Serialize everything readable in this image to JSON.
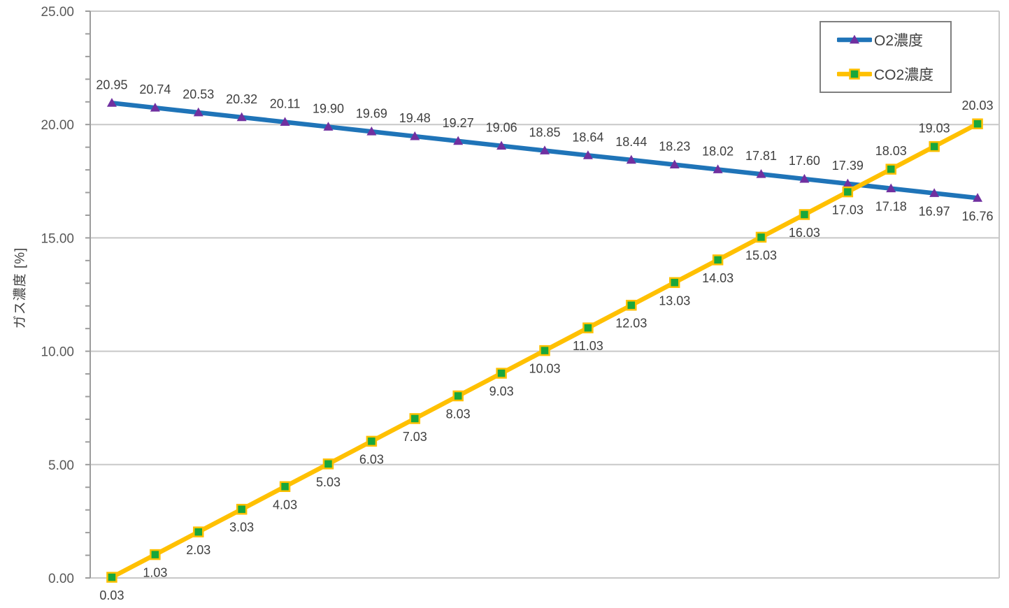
{
  "chart_data": {
    "type": "line",
    "title": "",
    "ylabel": "ガス濃度 [%]",
    "ylim": [
      0,
      25
    ],
    "grid": "horizontal-major",
    "y_minor_tick_interval": 1,
    "x_axis_labels_visible": false,
    "y_ticks": [
      {
        "value": 0,
        "label": "0.00"
      },
      {
        "value": 5,
        "label": "5.00"
      },
      {
        "value": 10,
        "label": "10.00"
      },
      {
        "value": 15,
        "label": "15.00"
      },
      {
        "value": 20,
        "label": "20.00"
      },
      {
        "value": 25,
        "label": "25.00"
      }
    ],
    "legend": {
      "position": "top-right",
      "border_color": "#7f7f7f"
    },
    "colors": {
      "gridline": "#c8c8c8",
      "axis": "#9c9c9c",
      "tick_label": "#595959",
      "data_label": "#3f3f3f"
    },
    "series": [
      {
        "name": "O2濃度",
        "line_color": "#1f74b8",
        "marker": "triangle",
        "marker_color": "#7030a0",
        "label_side_default": "above",
        "label_side_flip_start": 18,
        "values": [
          20.95,
          20.74,
          20.53,
          20.32,
          20.11,
          19.9,
          19.69,
          19.48,
          19.27,
          19.06,
          18.85,
          18.64,
          18.44,
          18.23,
          18.02,
          17.81,
          17.6,
          17.39,
          17.18,
          16.97,
          16.76
        ],
        "data_labels": [
          "20.95",
          "20.74",
          "20.53",
          "20.32",
          "20.11",
          "19.90",
          "19.69",
          "19.48",
          "19.27",
          "19.06",
          "18.85",
          "18.64",
          "18.44",
          "18.23",
          "18.02",
          "17.81",
          "17.60",
          "17.39",
          "17.18",
          "16.97",
          "16.76"
        ]
      },
      {
        "name": "CO2濃度",
        "line_color": "#ffc000",
        "marker": "square",
        "marker_color": "#18a73c",
        "label_side_default": "below",
        "label_side_flip_start": 18,
        "values": [
          0.03,
          1.03,
          2.03,
          3.03,
          4.03,
          5.03,
          6.03,
          7.03,
          8.03,
          9.03,
          10.03,
          11.03,
          12.03,
          13.03,
          14.03,
          15.03,
          16.03,
          17.03,
          18.03,
          19.03,
          20.03
        ],
        "data_labels": [
          "0.03",
          "1.03",
          "2.03",
          "3.03",
          "4.03",
          "5.03",
          "6.03",
          "7.03",
          "8.03",
          "9.03",
          "10.03",
          "11.03",
          "12.03",
          "13.03",
          "14.03",
          "15.03",
          "16.03",
          "17.03",
          "18.03",
          "19.03",
          "20.03"
        ]
      }
    ]
  }
}
